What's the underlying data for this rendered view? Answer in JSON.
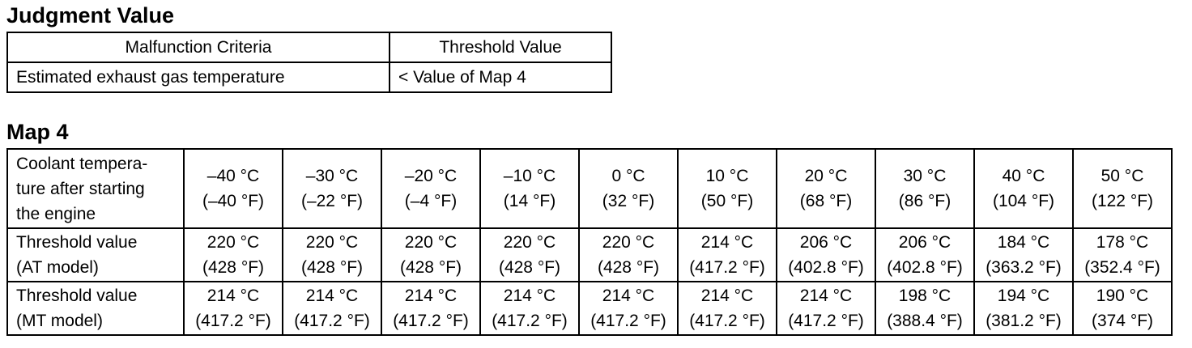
{
  "judgment": {
    "title": "Judgment Value",
    "table": {
      "header": [
        "Malfunction Criteria",
        "Threshold Value"
      ],
      "rows": [
        [
          "Estimated exhaust gas temperature",
          "< Value of Map 4"
        ]
      ]
    }
  },
  "map4": {
    "title": "Map 4",
    "table": {
      "header": [
        [
          "Coolant tempera-",
          "ture after starting",
          "the engine"
        ],
        [
          "–40 °C",
          "(–40 °F)"
        ],
        [
          "–30 °C",
          "(–22 °F)"
        ],
        [
          "–20 °C",
          "(–4 °F)"
        ],
        [
          "–10 °C",
          "(14 °F)"
        ],
        [
          "0 °C",
          "(32 °F)"
        ],
        [
          "10 °C",
          "(50 °F)"
        ],
        [
          "20 °C",
          "(68 °F)"
        ],
        [
          "30 °C",
          "(86 °F)"
        ],
        [
          "40 °C",
          "(104 °F)"
        ],
        [
          "50 °C",
          "(122 °F)"
        ]
      ],
      "rows": [
        [
          [
            "Threshold value",
            "(AT model)"
          ],
          [
            "220 °C",
            "(428 °F)"
          ],
          [
            "220 °C",
            "(428 °F)"
          ],
          [
            "220 °C",
            "(428 °F)"
          ],
          [
            "220 °C",
            "(428 °F)"
          ],
          [
            "220 °C",
            "(428 °F)"
          ],
          [
            "214 °C",
            "(417.2 °F)"
          ],
          [
            "206 °C",
            "(402.8 °F)"
          ],
          [
            "206 °C",
            "(402.8 °F)"
          ],
          [
            "184 °C",
            "(363.2 °F)"
          ],
          [
            "178 °C",
            "(352.4 °F)"
          ]
        ],
        [
          [
            "Threshold value",
            "(MT model)"
          ],
          [
            "214 °C",
            "(417.2 °F)"
          ],
          [
            "214 °C",
            "(417.2 °F)"
          ],
          [
            "214 °C",
            "(417.2 °F)"
          ],
          [
            "214 °C",
            "(417.2 °F)"
          ],
          [
            "214 °C",
            "(417.2 °F)"
          ],
          [
            "214 °C",
            "(417.2 °F)"
          ],
          [
            "214 °C",
            "(417.2 °F)"
          ],
          [
            "198 °C",
            "(388.4 °F)"
          ],
          [
            "194 °C",
            "(381.2 °F)"
          ],
          [
            "190 °C",
            "(374 °F)"
          ]
        ]
      ]
    }
  }
}
